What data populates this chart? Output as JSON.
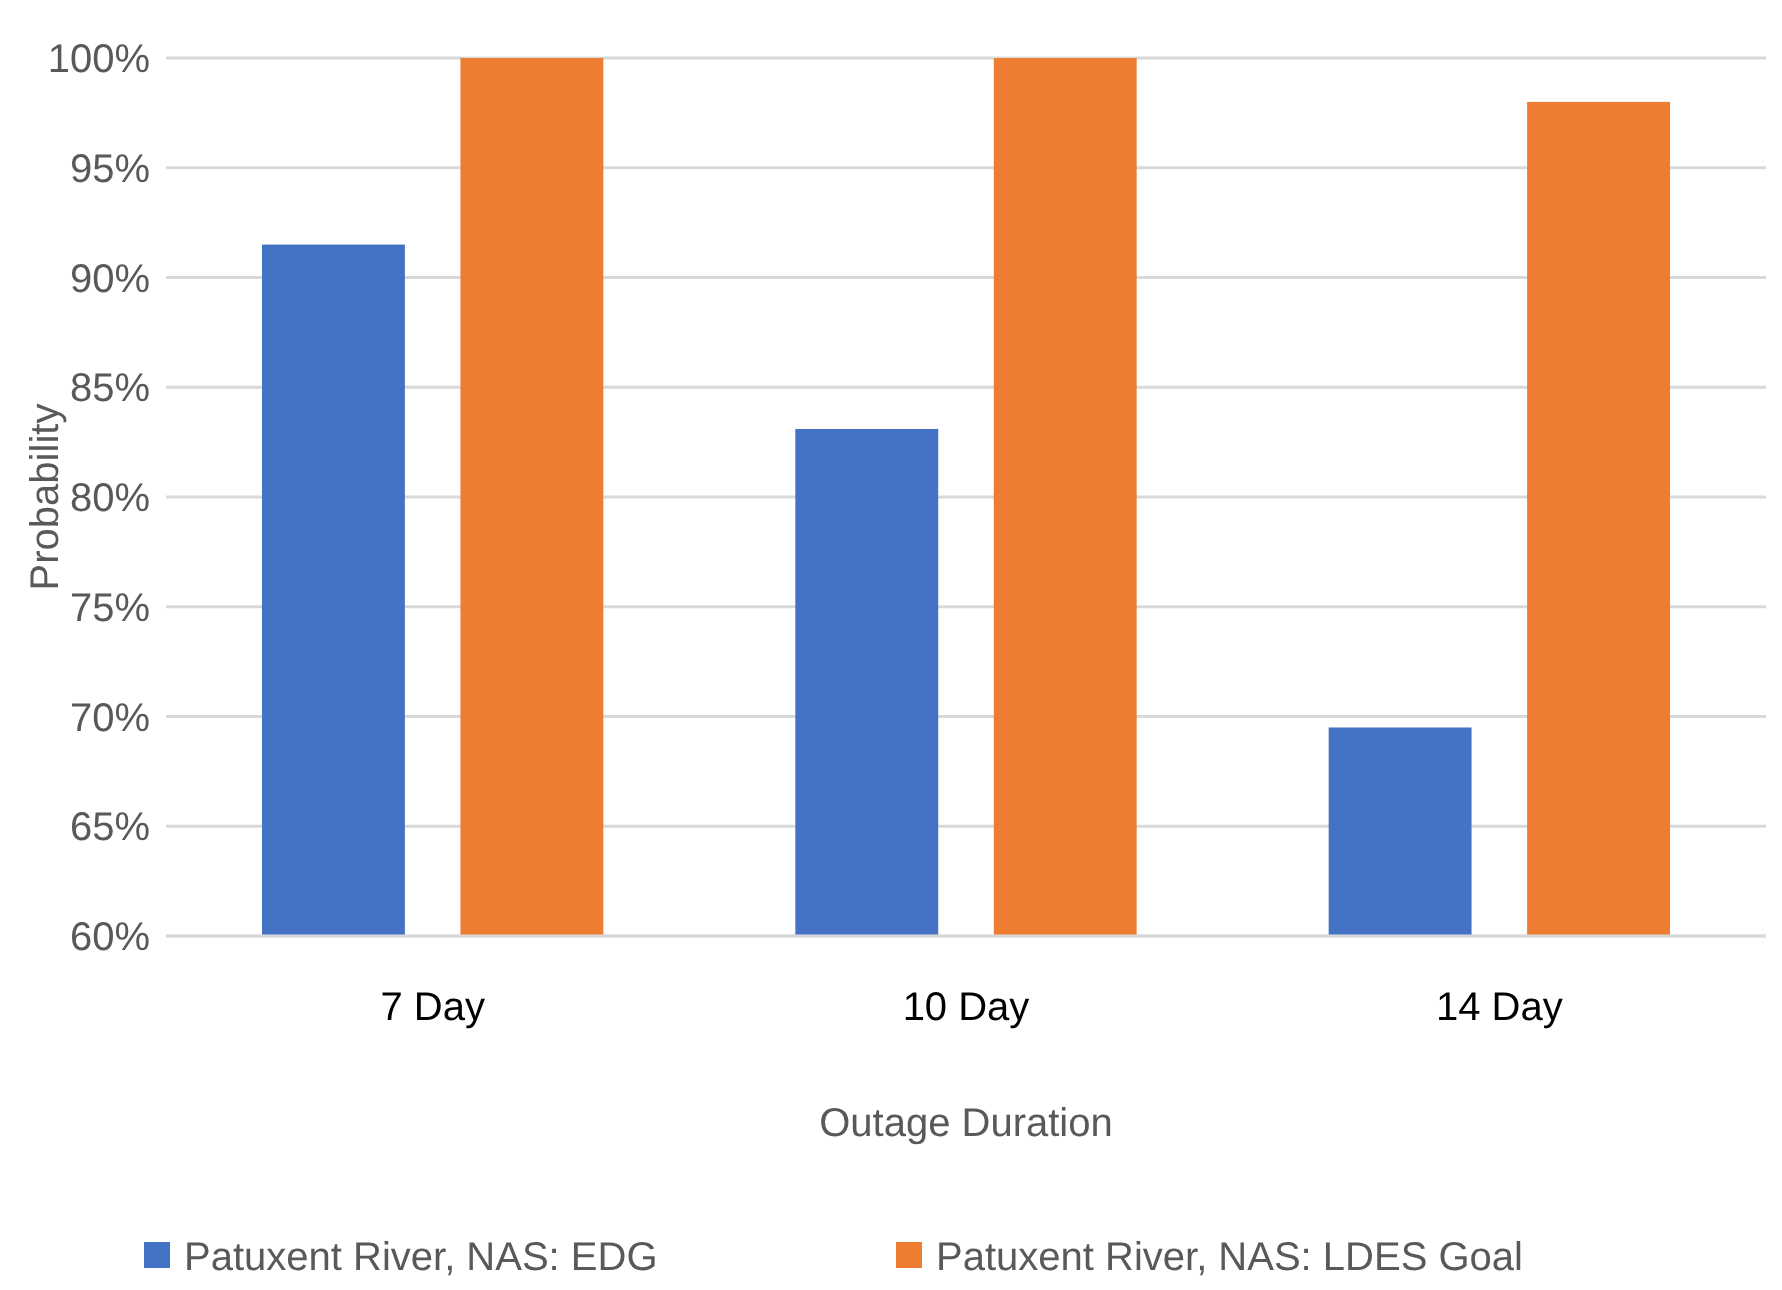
{
  "chart_data": {
    "type": "bar",
    "xlabel": "Outage Duration",
    "ylabel": "Probability",
    "categories": [
      "7 Day",
      "10 Day",
      "14 Day"
    ],
    "series": [
      {
        "name": "Patuxent River, NAS: EDG",
        "color": "#4472c4",
        "values": [
          91.5,
          83.1,
          69.5
        ]
      },
      {
        "name": "Patuxent River, NAS: LDES Goal",
        "color": "#ed7d31",
        "values": [
          100,
          100,
          98
        ]
      }
    ],
    "ylim": [
      60,
      100
    ],
    "yticks": [
      {
        "value": 60,
        "label": "60%"
      },
      {
        "value": 65,
        "label": "65%"
      },
      {
        "value": 70,
        "label": "70%"
      },
      {
        "value": 75,
        "label": "75%"
      },
      {
        "value": 80,
        "label": "80%"
      },
      {
        "value": 85,
        "label": "85%"
      },
      {
        "value": 90,
        "label": "90%"
      },
      {
        "value": 95,
        "label": "95%"
      },
      {
        "value": 100,
        "label": "100%"
      }
    ],
    "grid": "y",
    "legend": "bottom"
  }
}
